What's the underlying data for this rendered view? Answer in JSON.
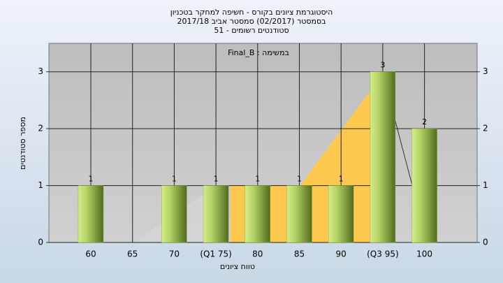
{
  "chart_data": {
    "type": "bar",
    "title": [
      "היסטוגרמת ציונים בקורס - חשיפה למחקר בטכניון",
      "בסמסטר  (02/2017)  סמסטר אביב 2017/18",
      "סטודנטים רשומים - 51"
    ],
    "subtitle": "Final_B : במשימה",
    "x_label": "טווח ציונים",
    "y_label": "מספר סטודנטים",
    "categories": [
      "60",
      "65",
      "70",
      "(Q1 75)",
      "80",
      "85",
      "90",
      "(Q3 95)",
      "100"
    ],
    "values": [
      1,
      0,
      1,
      1,
      1,
      1,
      1,
      3,
      2
    ],
    "color": "#8fb040",
    "ylim": [
      0,
      3.5
    ],
    "yticks": [
      0,
      1,
      2,
      3
    ],
    "grid": true
  }
}
